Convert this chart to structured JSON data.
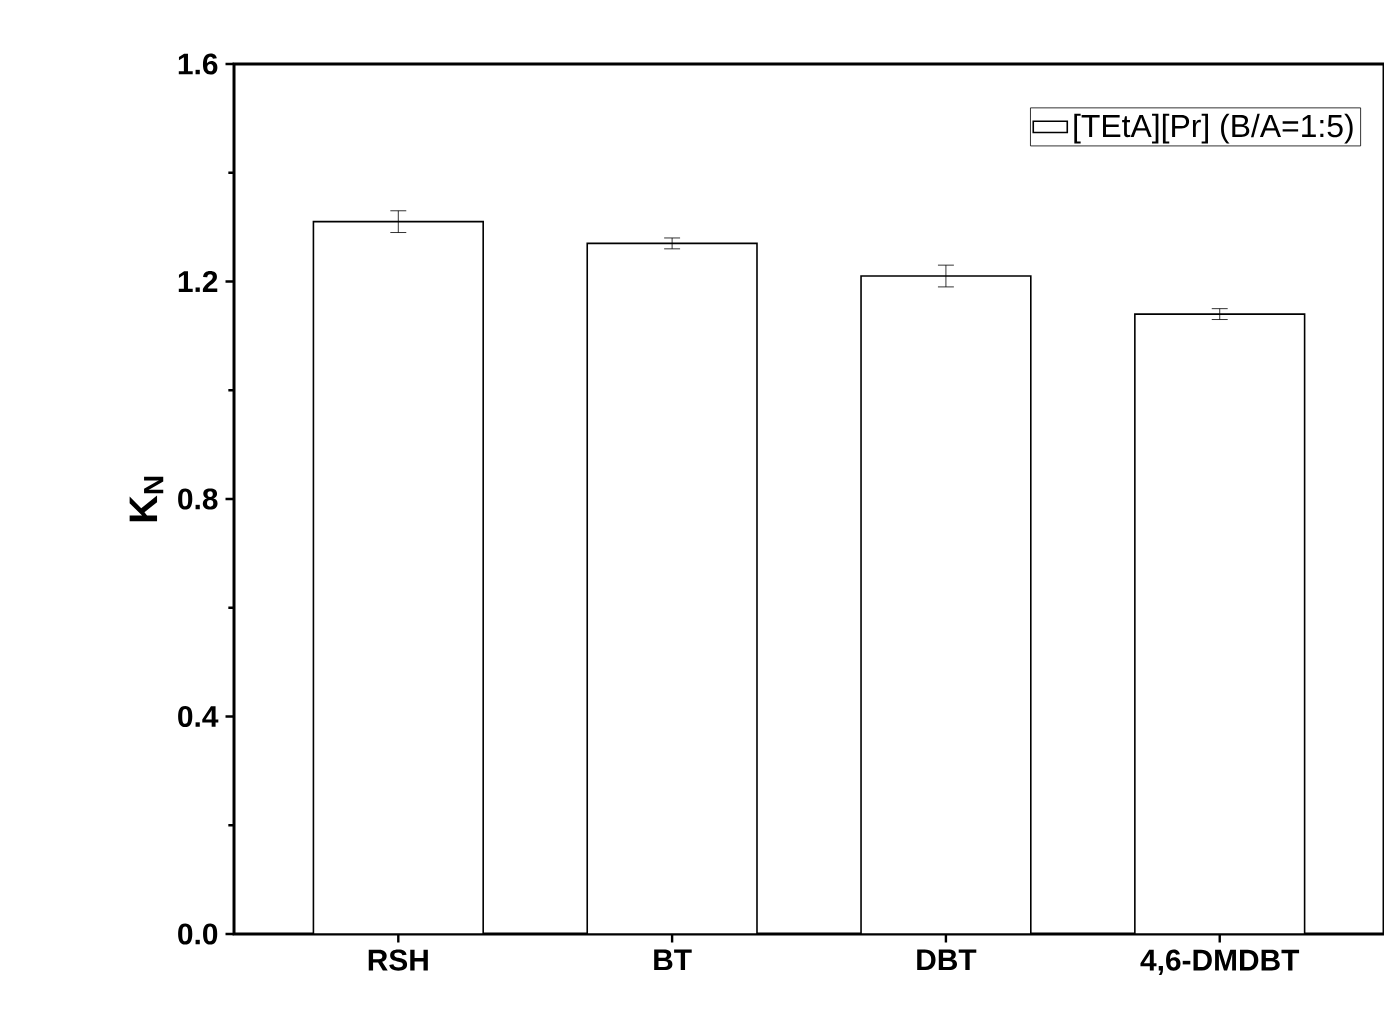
{
  "chart_data": {
    "type": "bar",
    "ylabel": "K$_{N}$",
    "categories": [
      "RSH",
      "BT",
      "DBT",
      "4,6-DMDBT"
    ],
    "series": [
      {
        "name": "[TEtA][Pr] (B/A=1:5)",
        "color": "#ffffff",
        "values": [
          1.31,
          1.27,
          1.21,
          1.14
        ],
        "errors": [
          0.02,
          0.01,
          0.02,
          0.01
        ]
      }
    ],
    "ylim": [
      0,
      1.6
    ],
    "yticks": [
      {
        "value": 0,
        "label": "0.0"
      },
      0.4,
      0.8,
      1.2,
      1.6
    ],
    "legend": "top right"
  }
}
